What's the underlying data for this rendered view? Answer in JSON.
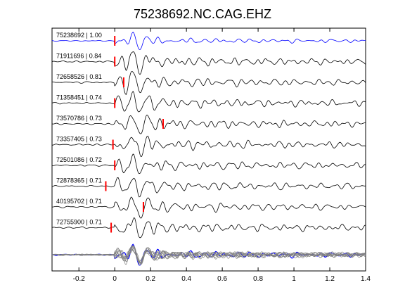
{
  "chart_data": {
    "type": "line",
    "title": "75238692.NC.CAG.EHZ",
    "xlabel": "",
    "ylabel": "",
    "xlim": [
      -0.35,
      1.4
    ],
    "x_ticks": [
      -0.2,
      0,
      0.2,
      0.4,
      0.6,
      0.8,
      1.0,
      1.2,
      1.4
    ],
    "x_tick_labels": [
      "-0.2",
      "0",
      "0.2",
      "0.4",
      "0.6",
      "0.8",
      "1",
      "1.2",
      "1.4"
    ],
    "grid": false,
    "colors": {
      "reference": "#0000ff",
      "trace": "#000000",
      "pick": "#ff0000",
      "stack": "#808080"
    },
    "traces": [
      {
        "label": "75238692 | 1.00",
        "pick_time": 0.0,
        "reference": true
      },
      {
        "label": "71911696 | 0.84",
        "pick_time": 0.0
      },
      {
        "label": "72658526 | 0.81",
        "pick_time": 0.05
      },
      {
        "label": "71358451 | 0.74",
        "pick_time": 0.0
      },
      {
        "label": "73570786 | 0.73",
        "pick_time": 0.27
      },
      {
        "label": "73357405 | 0.73",
        "pick_time": -0.01
      },
      {
        "label": "72501086 | 0.72",
        "pick_time": 0.0
      },
      {
        "label": "72878365 | 0.71",
        "pick_time": -0.05
      },
      {
        "label": "40195702 | 0.71",
        "pick_time": 0.16
      },
      {
        "label": "72755900 | 0.71",
        "pick_time": -0.02
      }
    ]
  }
}
